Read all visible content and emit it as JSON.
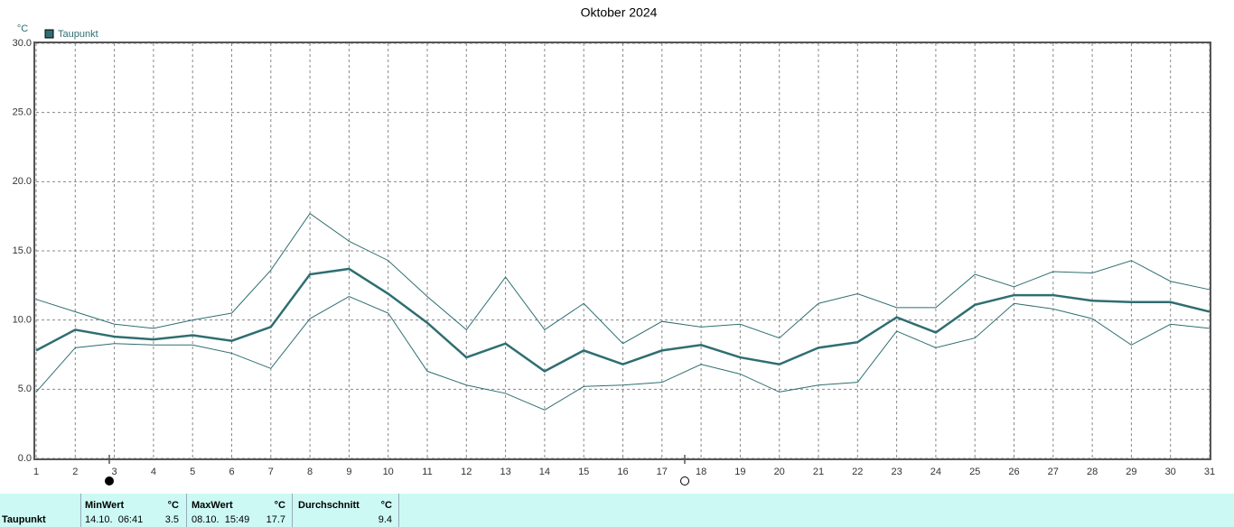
{
  "chart_data": {
    "type": "line",
    "title": "Oktober 2024",
    "y_unit": "°C",
    "x": [
      1,
      2,
      3,
      4,
      5,
      6,
      7,
      8,
      9,
      10,
      11,
      12,
      13,
      14,
      15,
      16,
      17,
      18,
      19,
      20,
      21,
      22,
      23,
      24,
      25,
      26,
      27,
      28,
      29,
      30,
      31
    ],
    "xlim": [
      1,
      31
    ],
    "xticks": [
      1,
      2,
      3,
      4,
      5,
      6,
      7,
      8,
      9,
      10,
      11,
      12,
      13,
      14,
      15,
      16,
      17,
      18,
      19,
      20,
      21,
      22,
      23,
      24,
      25,
      26,
      27,
      28,
      29,
      30,
      31
    ],
    "ylim": [
      0,
      30
    ],
    "yticks": [
      {
        "value": 0,
        "label": "0.0"
      },
      {
        "value": 5,
        "label": "5.0"
      },
      {
        "value": 10,
        "label": "10.0"
      },
      {
        "value": 15,
        "label": "15.0"
      },
      {
        "value": 20,
        "label": "20.0"
      },
      {
        "value": 25,
        "label": "25.0"
      },
      {
        "value": 30,
        "label": "30.0"
      }
    ],
    "grid": true,
    "series": [
      {
        "name": "Taupunkt",
        "color": "#2f6e71",
        "linewidth": 2.5,
        "values": [
          7.8,
          9.3,
          8.8,
          8.6,
          8.9,
          8.5,
          9.5,
          13.3,
          13.7,
          11.9,
          9.8,
          7.3,
          8.3,
          6.3,
          7.8,
          6.8,
          7.8,
          8.2,
          7.3,
          6.8,
          8.0,
          8.4,
          10.2,
          9.1,
          11.1,
          11.8,
          11.8,
          11.4,
          11.3,
          11.3,
          10.6
        ]
      },
      {
        "color": "#2f6e71",
        "linewidth": 1,
        "values": [
          11.5,
          10.6,
          9.7,
          9.4,
          10.0,
          10.5,
          13.6,
          17.7,
          15.7,
          14.3,
          11.7,
          9.3,
          13.1,
          9.3,
          11.2,
          8.3,
          9.9,
          9.5,
          9.7,
          8.7,
          11.2,
          11.9,
          10.9,
          10.9,
          13.3,
          12.4,
          13.5,
          13.4,
          14.3,
          12.8,
          12.2
        ]
      },
      {
        "color": "#2f6e71",
        "linewidth": 1,
        "values": [
          4.8,
          8.0,
          8.3,
          8.2,
          8.2,
          7.6,
          6.5,
          10.1,
          11.7,
          10.5,
          6.3,
          5.3,
          4.7,
          3.5,
          5.2,
          5.3,
          5.5,
          6.8,
          6.1,
          4.8,
          5.3,
          5.5,
          9.2,
          8.0,
          8.7,
          11.2,
          10.8,
          10.1,
          8.2,
          9.7,
          9.4
        ]
      }
    ]
  },
  "table": {
    "header": [
      "MinWert",
      "°C",
      "MaxWert",
      "°C",
      "Durchschnitt",
      "°C"
    ],
    "rows": [
      [
        "Taupunkt",
        "14.10.  06:41",
        "3.5",
        "08.10.  15:49",
        "17.7",
        "9.4"
      ]
    ]
  }
}
